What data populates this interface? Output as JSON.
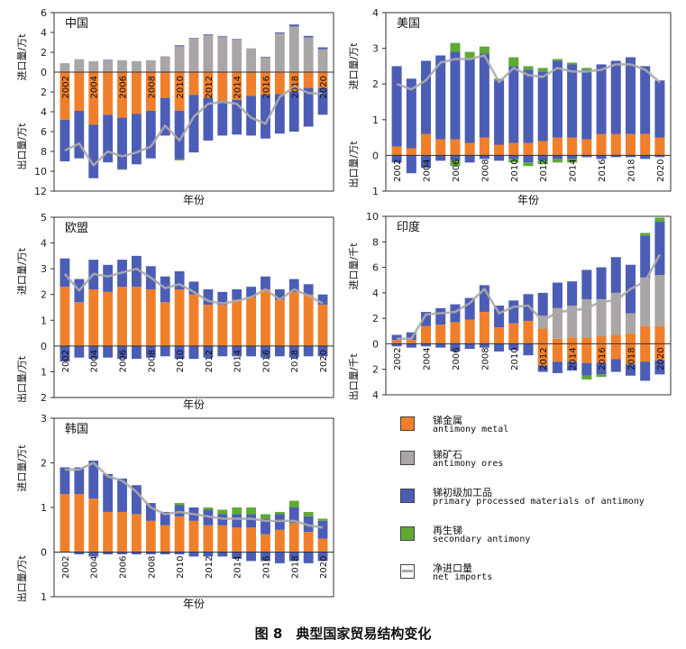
{
  "figure_caption": "图 8　典型国家贸易结构变化",
  "xaxis_label": "年份",
  "legend": [
    {
      "zh": "锑金属",
      "en": "antimony metal",
      "color": "#F07F2B",
      "kind": "box"
    },
    {
      "zh": "锑矿石",
      "en": "antimony ores",
      "color": "#A9A6A5",
      "kind": "box"
    },
    {
      "zh": "锑初级加工品",
      "en": "primary processed materials of antimony",
      "color": "#4C5DB5",
      "kind": "box"
    },
    {
      "zh": "再生锑",
      "en": "secondary antimony",
      "color": "#5DAA35",
      "kind": "box"
    },
    {
      "zh": "净进口量",
      "en": "net imports",
      "color": "#A9A6A5",
      "kind": "line"
    }
  ],
  "colors": {
    "metal": "#F07F2B",
    "ores": "#A9A6A5",
    "primary": "#4C5DB5",
    "secondary": "#5DAA35",
    "net": "#ABABAB"
  },
  "chart_data": [
    {
      "type": "bar",
      "key": "china",
      "title": "中国",
      "ylabel_import": "进口量/万t",
      "ylabel_export": "出口量/万t",
      "import_ticks": [
        0,
        2,
        4,
        6
      ],
      "export_ticks": [
        0,
        2,
        4,
        6,
        8,
        10,
        12
      ],
      "ylim": [
        -12,
        6
      ],
      "categories": [
        2002,
        2003,
        2004,
        2005,
        2006,
        2007,
        2008,
        2009,
        2010,
        2011,
        2012,
        2013,
        2014,
        2015,
        2016,
        2017,
        2018,
        2019,
        2020
      ],
      "tick_labels": [
        "2002",
        "2004",
        "2006",
        "2008",
        "2010",
        "2012",
        "2014",
        "2016",
        "2018",
        "2020"
      ],
      "import": {
        "metal": [
          0,
          0,
          0,
          0,
          0,
          0,
          0,
          0,
          0,
          0,
          0,
          0,
          0,
          0,
          0,
          0,
          0,
          0,
          0
        ],
        "ores": [
          0.9,
          1.3,
          1.1,
          1.2,
          1.2,
          1.1,
          1.2,
          1.6,
          2.6,
          3.4,
          3.7,
          3.6,
          3.3,
          2.4,
          1.5,
          3.9,
          4.6,
          3.5,
          2.3
        ],
        "primary": [
          0,
          0,
          0,
          0.05,
          0,
          0,
          0,
          0,
          0.1,
          0.05,
          0.1,
          0.05,
          0.05,
          0,
          0.05,
          0.1,
          0.2,
          0.15,
          0.2
        ],
        "secondary": [
          0,
          0,
          0,
          0,
          0,
          0,
          0,
          0,
          0,
          0,
          0,
          0,
          0,
          0,
          0,
          0,
          0,
          0,
          0
        ]
      },
      "export": {
        "metal": [
          4.8,
          3.9,
          5.3,
          4.3,
          4.6,
          4.2,
          3.9,
          2.6,
          3.9,
          2.3,
          2.6,
          2.9,
          2.8,
          2.4,
          2.3,
          2.2,
          2.0,
          1.6,
          1.6
        ],
        "ores": [
          0,
          0,
          0,
          0,
          0,
          0,
          0,
          0,
          0,
          0,
          0,
          0,
          0,
          0,
          0,
          0,
          0,
          0,
          0
        ],
        "primary": [
          4.2,
          4.8,
          5.4,
          4.8,
          5.2,
          5.1,
          4.8,
          3.8,
          4.9,
          5.8,
          4.3,
          3.5,
          3.5,
          4.0,
          4.4,
          4.0,
          4.0,
          3.9,
          2.7
        ],
        "secondary": [
          0,
          0,
          0,
          0,
          0.05,
          0,
          0,
          0,
          0.1,
          0,
          0,
          0,
          0,
          0,
          0,
          0,
          0,
          0,
          0
        ]
      },
      "net": [
        -7.9,
        -7.2,
        -9.4,
        -8.0,
        -8.5,
        -8.1,
        -7.5,
        -5.4,
        -6.9,
        -4.5,
        -3.2,
        -3.0,
        -3.2,
        -4.6,
        -5.2,
        -2.5,
        -1.5,
        -2.1,
        -2.2
      ]
    },
    {
      "type": "bar",
      "key": "usa",
      "title": "美国",
      "ylabel_import": "进口量/万t",
      "ylabel_export": "出口量/万t",
      "import_ticks": [
        0,
        1,
        2,
        3,
        4
      ],
      "export_ticks": [
        0,
        1
      ],
      "ylim": [
        -1,
        4
      ],
      "categories": [
        2002,
        2003,
        2004,
        2005,
        2006,
        2007,
        2008,
        2009,
        2010,
        2011,
        2012,
        2013,
        2014,
        2015,
        2016,
        2017,
        2018,
        2019,
        2020
      ],
      "tick_labels": [
        "2002",
        "2004",
        "2006",
        "2008",
        "2010",
        "2012",
        "2014",
        "2016",
        "2018",
        "2020"
      ],
      "import": {
        "metal": [
          0.25,
          0.2,
          0.6,
          0.45,
          0.45,
          0.35,
          0.5,
          0.3,
          0.35,
          0.35,
          0.4,
          0.5,
          0.5,
          0.45,
          0.6,
          0.6,
          0.6,
          0.6,
          0.5
        ],
        "ores": [
          0,
          0,
          0,
          0,
          0,
          0,
          0,
          0,
          0,
          0,
          0,
          0,
          0,
          0,
          0,
          0,
          0,
          0,
          0
        ],
        "primary": [
          2.25,
          1.95,
          2.05,
          2.35,
          2.45,
          2.35,
          2.35,
          1.8,
          2.15,
          2.05,
          1.95,
          2.15,
          2.05,
          1.95,
          1.95,
          2.05,
          2.15,
          1.9,
          1.6
        ],
        "secondary": [
          0,
          0,
          0,
          0,
          0.25,
          0.2,
          0.2,
          0.05,
          0.25,
          0.1,
          0.1,
          0.05,
          0.05,
          0.05,
          0,
          0,
          0,
          0,
          0
        ]
      },
      "export": {
        "metal": [
          0,
          0,
          0,
          0,
          0,
          0,
          0,
          0,
          0,
          0,
          0,
          0,
          0,
          0,
          0,
          0,
          0,
          0,
          0
        ],
        "ores": [
          0,
          0,
          0,
          0,
          0,
          0,
          0,
          0,
          0,
          0,
          0,
          0,
          0,
          0,
          0,
          0,
          0,
          0,
          0
        ],
        "primary": [
          0.2,
          0.5,
          0.35,
          0.15,
          0.15,
          0.2,
          0.1,
          0.15,
          0.1,
          0.2,
          0.15,
          0.1,
          0.1,
          0.05,
          0.1,
          0.05,
          0.05,
          0.1,
          0.05
        ],
        "secondary": [
          0,
          0,
          0,
          0,
          0.15,
          0,
          0,
          0,
          0.1,
          0.1,
          0.1,
          0.1,
          0.1,
          0,
          0,
          0,
          0,
          0,
          0
        ]
      },
      "net": [
        2.0,
        1.85,
        2.1,
        2.6,
        2.7,
        2.7,
        2.8,
        2.05,
        2.45,
        2.25,
        2.2,
        2.45,
        2.35,
        2.35,
        2.4,
        2.55,
        2.55,
        2.4,
        2.05
      ]
    },
    {
      "type": "bar",
      "key": "eu",
      "title": "欧盟",
      "ylabel_import": "进口量/万t",
      "ylabel_export": "出口量/万t",
      "import_ticks": [
        0,
        1,
        2,
        3,
        4,
        5
      ],
      "export_ticks": [
        0,
        1,
        2
      ],
      "ylim": [
        -2,
        5
      ],
      "categories": [
        2002,
        2003,
        2004,
        2005,
        2006,
        2007,
        2008,
        2009,
        2010,
        2011,
        2012,
        2013,
        2014,
        2015,
        2016,
        2017,
        2018,
        2019,
        2020
      ],
      "tick_labels": [
        "2002",
        "2004",
        "2006",
        "2008",
        "2010",
        "2012",
        "2014",
        "2016",
        "2018",
        "2020"
      ],
      "import": {
        "metal": [
          2.3,
          1.7,
          2.2,
          2.1,
          2.3,
          2.3,
          2.2,
          1.7,
          2.2,
          2.0,
          1.6,
          1.6,
          1.8,
          1.9,
          2.2,
          1.8,
          2.1,
          2.0,
          1.6
        ],
        "ores": [
          0,
          0,
          0,
          0,
          0,
          0,
          0,
          0,
          0,
          0,
          0,
          0,
          0,
          0,
          0,
          0,
          0,
          0,
          0
        ],
        "primary": [
          1.1,
          0.9,
          1.15,
          1.05,
          1.05,
          1.2,
          0.9,
          1.0,
          0.7,
          0.5,
          0.6,
          0.5,
          0.4,
          0.4,
          0.5,
          0.4,
          0.5,
          0.4,
          0.4
        ],
        "secondary": [
          0,
          0,
          0,
          0,
          0,
          0,
          0,
          0,
          0,
          0,
          0,
          0,
          0,
          0,
          0,
          0,
          0,
          0,
          0
        ]
      },
      "export": {
        "metal": [
          0,
          0,
          0,
          0,
          0,
          0,
          0,
          0,
          0,
          0,
          0,
          0,
          0,
          0,
          0,
          0,
          0,
          0,
          0
        ],
        "ores": [
          0,
          0,
          0,
          0,
          0,
          0,
          0,
          0,
          0,
          0,
          0,
          0,
          0,
          0,
          0,
          0,
          0,
          0,
          0
        ],
        "primary": [
          0.6,
          0.45,
          0.5,
          0.45,
          0.5,
          0.5,
          0.45,
          0.4,
          0.5,
          0.5,
          0.45,
          0.4,
          0.4,
          0.4,
          0.45,
          0.4,
          0.45,
          0.4,
          0.4
        ],
        "secondary": [
          0,
          0,
          0,
          0,
          0,
          0,
          0,
          0,
          0,
          0,
          0,
          0,
          0,
          0,
          0,
          0,
          0,
          0,
          0
        ]
      },
      "net": [
        2.8,
        2.15,
        2.8,
        2.7,
        2.85,
        3.0,
        2.65,
        2.25,
        2.4,
        2.1,
        1.75,
        1.65,
        1.75,
        1.9,
        2.2,
        1.8,
        2.2,
        1.95,
        1.65
      ]
    },
    {
      "type": "bar",
      "key": "india",
      "title": "印度",
      "ylabel_import": "进口量/千t",
      "ylabel_export": "出口量/千t",
      "import_ticks": [
        0,
        2,
        4,
        6,
        8,
        10
      ],
      "export_ticks": [
        0,
        2,
        4
      ],
      "ylim": [
        -4,
        10
      ],
      "categories": [
        2002,
        2003,
        2004,
        2005,
        2006,
        2007,
        2008,
        2009,
        2010,
        2011,
        2012,
        2013,
        2014,
        2015,
        2016,
        2017,
        2018,
        2019,
        2020
      ],
      "tick_labels": [
        "2002",
        "2004",
        "2006",
        "2008",
        "2010",
        "2012",
        "2014",
        "2016",
        "2018",
        "2020"
      ],
      "import": {
        "metal": [
          0.3,
          0.3,
          1.4,
          1.5,
          1.7,
          1.9,
          2.5,
          1.3,
          1.6,
          1.8,
          1.2,
          0.4,
          0.5,
          0.5,
          0.6,
          0.7,
          0.8,
          1.4,
          1.4
        ],
        "ores": [
          0,
          0,
          0,
          0,
          0,
          0,
          0,
          0,
          0,
          0,
          1.0,
          2.4,
          2.5,
          3.0,
          2.9,
          3.3,
          1.6,
          3.8,
          4.0
        ],
        "primary": [
          0.4,
          0.6,
          1.1,
          1.3,
          1.4,
          1.7,
          2.1,
          1.7,
          1.8,
          2.1,
          1.8,
          2.0,
          1.9,
          2.3,
          2.5,
          2.8,
          3.8,
          3.3,
          4.2
        ],
        "secondary": [
          0,
          0,
          0,
          0,
          0,
          0,
          0,
          0,
          0,
          0,
          0,
          0,
          0,
          0,
          0,
          0,
          0,
          0.2,
          0.3
        ]
      },
      "export": {
        "metal": [
          0,
          0,
          0,
          0,
          0,
          0,
          0,
          0,
          0,
          0,
          1.7,
          1.4,
          1.4,
          1.5,
          1.5,
          1.2,
          1.6,
          1.4,
          1.3
        ],
        "ores": [
          0,
          0,
          0,
          0,
          0,
          0,
          0,
          0,
          0,
          0,
          0,
          0,
          0,
          0,
          0,
          0,
          0,
          0,
          0
        ],
        "primary": [
          0.2,
          0.3,
          0.2,
          0.3,
          0.6,
          0.4,
          0.3,
          0.6,
          0.5,
          0.9,
          0.5,
          0.9,
          0.7,
          1.0,
          0.9,
          1.0,
          0.9,
          1.5,
          1.1
        ],
        "secondary": [
          0,
          0,
          0,
          0,
          0,
          0,
          0,
          0,
          0,
          0,
          0,
          0,
          0,
          0.3,
          0.2,
          0,
          0,
          0,
          0
        ]
      },
      "net": [
        0.4,
        0.4,
        2.3,
        2.4,
        2.5,
        3.2,
        4.3,
        2.4,
        2.9,
        3.0,
        1.8,
        2.5,
        2.6,
        2.8,
        3.3,
        3.4,
        4.3,
        4.9,
        7.0
      ]
    },
    {
      "type": "bar",
      "key": "korea",
      "title": "韩国",
      "ylabel_import": "进口量/万t",
      "ylabel_export": "出口量/万t",
      "import_ticks": [
        0,
        1,
        2,
        3
      ],
      "export_ticks": [
        0,
        1
      ],
      "ylim": [
        -1,
        3
      ],
      "categories": [
        2002,
        2003,
        2004,
        2005,
        2006,
        2007,
        2008,
        2009,
        2010,
        2011,
        2012,
        2013,
        2014,
        2015,
        2016,
        2017,
        2018,
        2019,
        2020
      ],
      "tick_labels": [
        "2002",
        "2004",
        "2006",
        "2008",
        "2010",
        "2012",
        "2014",
        "2016",
        "2018",
        "2020"
      ],
      "import": {
        "metal": [
          1.3,
          1.3,
          1.2,
          0.9,
          0.9,
          0.85,
          0.7,
          0.6,
          0.8,
          0.7,
          0.6,
          0.6,
          0.55,
          0.55,
          0.4,
          0.5,
          0.65,
          0.45,
          0.3
        ],
        "ores": [
          0,
          0,
          0,
          0,
          0,
          0,
          0,
          0,
          0,
          0,
          0,
          0,
          0,
          0,
          0,
          0,
          0,
          0,
          0
        ],
        "primary": [
          0.6,
          0.6,
          0.85,
          0.85,
          0.75,
          0.65,
          0.4,
          0.3,
          0.25,
          0.3,
          0.35,
          0.25,
          0.3,
          0.3,
          0.35,
          0.35,
          0.35,
          0.35,
          0.4
        ],
        "secondary": [
          0,
          0,
          0,
          0,
          0,
          0,
          0,
          0,
          0.05,
          0,
          0.05,
          0.1,
          0.15,
          0.15,
          0.1,
          0.05,
          0.15,
          0.1,
          0.05
        ]
      },
      "export": {
        "metal": [
          0,
          0,
          0,
          0,
          0,
          0,
          0,
          0,
          0,
          0,
          0,
          0,
          0,
          0,
          0,
          0,
          0,
          0,
          0
        ],
        "ores": [
          0,
          0,
          0,
          0,
          0,
          0,
          0,
          0,
          0,
          0,
          0,
          0,
          0,
          0,
          0,
          0,
          0,
          0,
          0
        ],
        "primary": [
          0,
          0.05,
          0.1,
          0.05,
          0.05,
          0.05,
          0.05,
          0.05,
          0.05,
          0.1,
          0.1,
          0.1,
          0.15,
          0.2,
          0.2,
          0.25,
          0.2,
          0.25,
          0.2
        ],
        "secondary": [
          0,
          0,
          0,
          0,
          0,
          0,
          0,
          0,
          0,
          0,
          0,
          0,
          0,
          0,
          0,
          0,
          0,
          0,
          0
        ]
      },
      "net": [
        1.85,
        1.85,
        2.0,
        1.7,
        1.6,
        1.35,
        1.0,
        0.85,
        0.9,
        0.85,
        0.8,
        0.75,
        0.75,
        0.75,
        0.7,
        0.7,
        0.7,
        0.6,
        0.55
      ]
    }
  ]
}
